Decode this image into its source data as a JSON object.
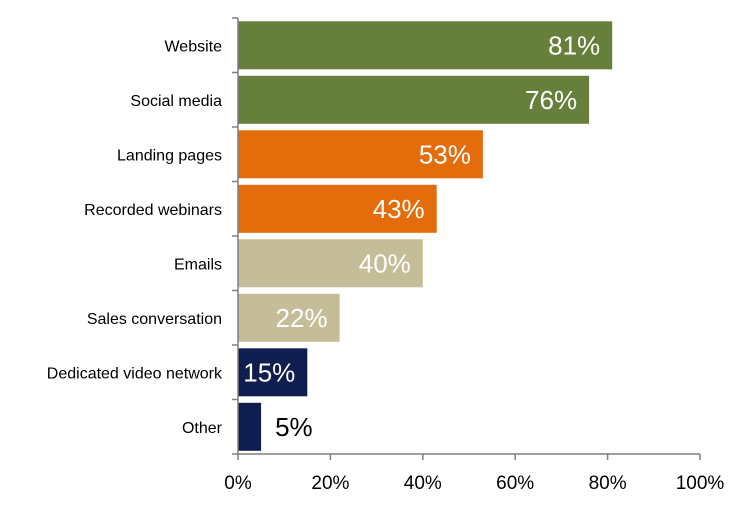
{
  "chart_data": {
    "type": "bar",
    "orientation": "horizontal",
    "categories": [
      "Website",
      "Social media",
      "Landing pages",
      "Recorded webinars",
      "Emails",
      "Sales conversation",
      "Dedicated video network",
      "Other"
    ],
    "values": [
      81,
      76,
      53,
      43,
      40,
      22,
      15,
      5
    ],
    "value_labels": [
      "81%",
      "76%",
      "53%",
      "43%",
      "40%",
      "22%",
      "15%",
      "5%"
    ],
    "bar_colors": [
      "#667f3a",
      "#667f3a",
      "#e46c0a",
      "#e46c0a",
      "#c4bd97",
      "#c4bd97",
      "#0f1e4f",
      "#0f1e4f"
    ],
    "value_label_colors": [
      "#ffffff",
      "#ffffff",
      "#ffffff",
      "#ffffff",
      "#ffffff",
      "#ffffff",
      "#ffffff",
      "#000000"
    ],
    "xlim": [
      0,
      100
    ],
    "xticks": [
      0,
      20,
      40,
      60,
      80,
      100
    ],
    "xtick_labels": [
      "0%",
      "20%",
      "40%",
      "60%",
      "80%",
      "100%"
    ],
    "title": "",
    "xlabel": "",
    "ylabel": "",
    "grid": false,
    "legend": "none"
  }
}
